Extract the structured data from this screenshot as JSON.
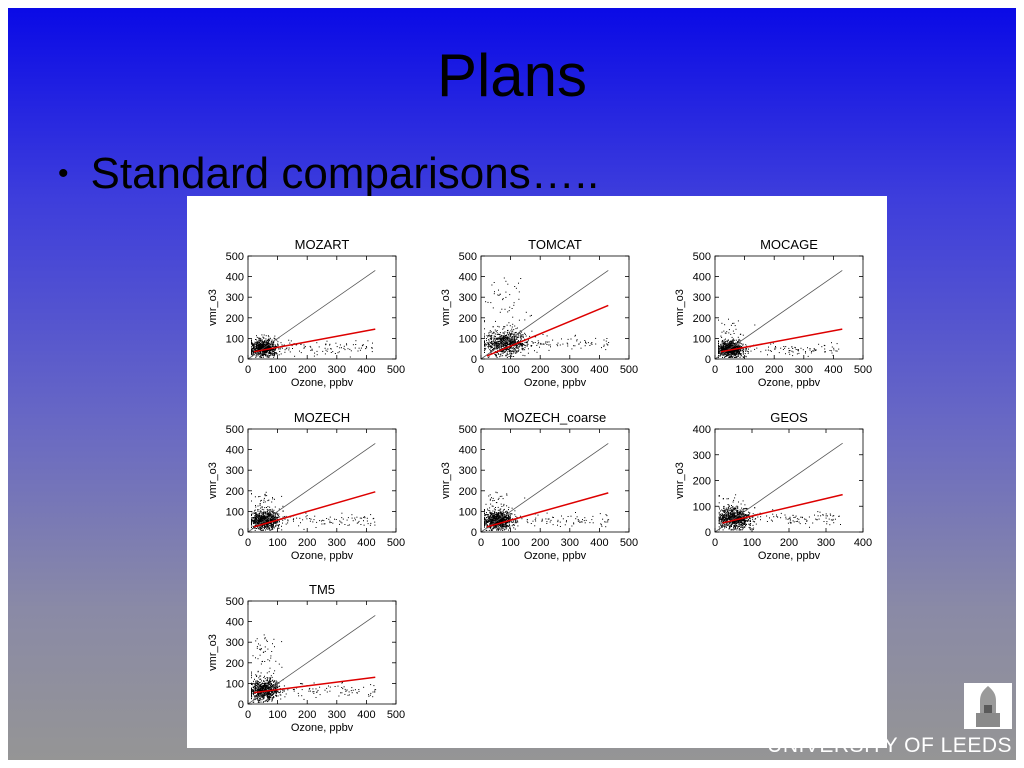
{
  "slide": {
    "title": "Plans",
    "bullet": "Standard comparisons…..",
    "logo_text": "UNIVERSITY OF LEEDS"
  },
  "colors": {
    "background_top": "#0a0ae6",
    "background_bottom": "#959595",
    "fit_line": "#dd0000",
    "one_to_one_line": "#555555",
    "points": "#000000"
  },
  "chart_data": [
    {
      "type": "scatter",
      "title": "MOZART",
      "xlabel": "Ozone, ppbv",
      "ylabel": "vmr_o3",
      "xlim": [
        0,
        500
      ],
      "ylim": [
        0,
        500
      ],
      "xticks": [
        "0",
        "100",
        "200",
        "300",
        "400",
        "500"
      ],
      "yticks": [
        "0",
        "100",
        "200",
        "300",
        "400",
        "500"
      ],
      "one_to_one": {
        "x": [
          0,
          430
        ],
        "y": [
          0,
          430
        ]
      },
      "fit_line": {
        "x": [
          20,
          430
        ],
        "y": [
          35,
          145
        ]
      },
      "point_cloud": {
        "center": [
          50,
          55
        ],
        "x_range": [
          10,
          420
        ],
        "y_range": [
          10,
          120
        ]
      }
    },
    {
      "type": "scatter",
      "title": "TOMCAT",
      "xlabel": "Ozone, ppbv",
      "ylabel": "vmr_o3",
      "xlim": [
        0,
        500
      ],
      "ylim": [
        0,
        500
      ],
      "xticks": [
        "0",
        "100",
        "200",
        "300",
        "400",
        "500"
      ],
      "yticks": [
        "0",
        "100",
        "200",
        "300",
        "400",
        "500"
      ],
      "one_to_one": {
        "x": [
          0,
          430
        ],
        "y": [
          0,
          430
        ]
      },
      "fit_line": {
        "x": [
          20,
          430
        ],
        "y": [
          15,
          260
        ]
      },
      "point_cloud": {
        "center": [
          80,
          80
        ],
        "x_range": [
          10,
          430
        ],
        "y_range": [
          10,
          410
        ]
      }
    },
    {
      "type": "scatter",
      "title": "MOCAGE",
      "xlabel": "Ozone, ppbv",
      "ylabel": "vmr_o3",
      "xlim": [
        0,
        500
      ],
      "ylim": [
        0,
        500
      ],
      "xticks": [
        "0",
        "100",
        "200",
        "300",
        "400",
        "500"
      ],
      "yticks": [
        "0",
        "100",
        "200",
        "300",
        "400",
        "500"
      ],
      "one_to_one": {
        "x": [
          0,
          430
        ],
        "y": [
          0,
          430
        ]
      },
      "fit_line": {
        "x": [
          20,
          430
        ],
        "y": [
          35,
          145
        ]
      },
      "point_cloud": {
        "center": [
          50,
          50
        ],
        "x_range": [
          10,
          420
        ],
        "y_range": [
          10,
          200
        ]
      }
    },
    {
      "type": "scatter",
      "title": "MOZECH",
      "xlabel": "Ozone, ppbv",
      "ylabel": "vmr_o3",
      "xlim": [
        0,
        500
      ],
      "ylim": [
        0,
        500
      ],
      "xticks": [
        "0",
        "100",
        "200",
        "300",
        "400",
        "500"
      ],
      "yticks": [
        "0",
        "100",
        "200",
        "300",
        "400",
        "500"
      ],
      "one_to_one": {
        "x": [
          0,
          430
        ],
        "y": [
          0,
          430
        ]
      },
      "fit_line": {
        "x": [
          20,
          430
        ],
        "y": [
          25,
          195
        ]
      },
      "point_cloud": {
        "center": [
          55,
          60
        ],
        "x_range": [
          10,
          430
        ],
        "y_range": [
          10,
          200
        ]
      }
    },
    {
      "type": "scatter",
      "title": "MOZECH_coarse",
      "xlabel": "Ozone, ppbv",
      "ylabel": "vmr_o3",
      "xlim": [
        0,
        500
      ],
      "ylim": [
        0,
        500
      ],
      "xticks": [
        "0",
        "100",
        "200",
        "300",
        "400",
        "500"
      ],
      "yticks": [
        "0",
        "100",
        "200",
        "300",
        "400",
        "500"
      ],
      "one_to_one": {
        "x": [
          0,
          430
        ],
        "y": [
          0,
          430
        ]
      },
      "fit_line": {
        "x": [
          20,
          430
        ],
        "y": [
          25,
          190
        ]
      },
      "point_cloud": {
        "center": [
          55,
          60
        ],
        "x_range": [
          10,
          430
        ],
        "y_range": [
          10,
          200
        ]
      }
    },
    {
      "type": "scatter",
      "title": "GEOS",
      "xlabel": "Ozone, ppbv",
      "ylabel": "vmr_o3",
      "xlim": [
        0,
        400
      ],
      "ylim": [
        0,
        400
      ],
      "xticks": [
        "0",
        "100",
        "200",
        "300",
        "400"
      ],
      "yticks": [
        "0",
        "100",
        "200",
        "300",
        "400"
      ],
      "one_to_one": {
        "x": [
          0,
          345
        ],
        "y": [
          0,
          345
        ]
      },
      "fit_line": {
        "x": [
          20,
          345
        ],
        "y": [
          35,
          145
        ]
      },
      "point_cloud": {
        "center": [
          50,
          55
        ],
        "x_range": [
          10,
          340
        ],
        "y_range": [
          10,
          150
        ]
      }
    },
    {
      "type": "scatter",
      "title": "TM5",
      "xlabel": "Ozone, ppbv",
      "ylabel": "vmr_o3",
      "xlim": [
        0,
        500
      ],
      "ylim": [
        0,
        500
      ],
      "xticks": [
        "0",
        "100",
        "200",
        "300",
        "400",
        "500"
      ],
      "yticks": [
        "0",
        "100",
        "200",
        "300",
        "400",
        "500"
      ],
      "one_to_one": {
        "x": [
          0,
          430
        ],
        "y": [
          0,
          430
        ]
      },
      "fit_line": {
        "x": [
          20,
          430
        ],
        "y": [
          55,
          130
        ]
      },
      "point_cloud": {
        "center": [
          55,
          70
        ],
        "x_range": [
          10,
          430
        ],
        "y_range": [
          10,
          350
        ]
      }
    }
  ]
}
